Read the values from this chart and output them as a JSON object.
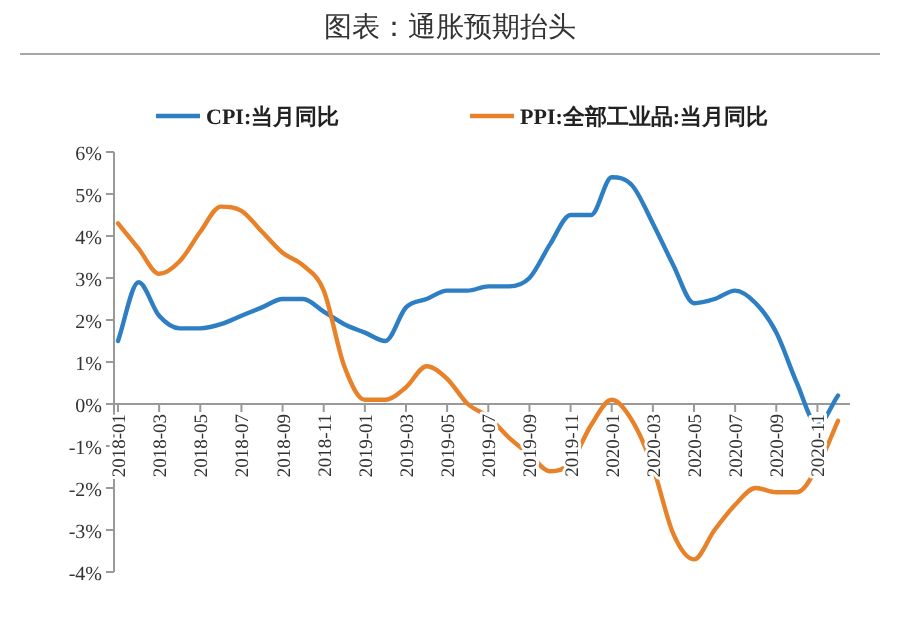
{
  "chart_data": {
    "type": "line",
    "title": "图表：通胀预期抬头",
    "categories": [
      "2018-01",
      null,
      "2018-03",
      null,
      "2018-05",
      null,
      "2018-07",
      null,
      "2018-09",
      null,
      "2018-11",
      null,
      "2019-01",
      null,
      "2019-03",
      null,
      "2019-05",
      null,
      "2019-07",
      null,
      "2019-09",
      null,
      "2019-11",
      null,
      "2020-01",
      null,
      "2020-03",
      null,
      "2020-05",
      null,
      "2020-07",
      null,
      "2020-09",
      null,
      "2020-11",
      null
    ],
    "series": [
      {
        "name": "CPI:当月同比",
        "color": "#2e7ec4",
        "values": [
          1.5,
          2.9,
          2.1,
          1.8,
          1.8,
          1.9,
          2.1,
          2.3,
          2.5,
          2.5,
          2.2,
          1.9,
          1.7,
          1.5,
          2.3,
          2.5,
          2.7,
          2.7,
          2.8,
          2.8,
          3.0,
          3.8,
          4.5,
          4.5,
          5.4,
          5.2,
          4.3,
          3.3,
          2.4,
          2.5,
          2.7,
          2.4,
          1.7,
          0.5,
          -0.5,
          0.2
        ]
      },
      {
        "name": "PPI:全部工业品:当月同比",
        "color": "#e8822a",
        "values": [
          4.3,
          3.7,
          3.1,
          3.4,
          4.1,
          4.7,
          4.6,
          4.1,
          3.6,
          3.3,
          2.7,
          0.9,
          0.1,
          0.1,
          0.4,
          0.9,
          0.6,
          0.0,
          -0.3,
          -0.8,
          -1.2,
          -1.6,
          -1.4,
          -0.5,
          0.1,
          -0.4,
          -1.5,
          -3.1,
          -3.7,
          -3.0,
          -2.4,
          -2.0,
          -2.1,
          -2.1,
          -1.5,
          -0.4
        ]
      }
    ],
    "ylim": [
      -4,
      6
    ],
    "yticks": [
      {
        "value": -4,
        "label": "-4%"
      },
      {
        "value": -3,
        "label": "-3%"
      },
      {
        "value": -2,
        "label": "-2%"
      },
      {
        "value": -1,
        "label": "-1%"
      },
      {
        "value": 0,
        "label": "0%"
      },
      {
        "value": 1,
        "label": "1%"
      },
      {
        "value": 2,
        "label": "2%"
      },
      {
        "value": 3,
        "label": "3%"
      },
      {
        "value": 4,
        "label": "4%"
      },
      {
        "value": 5,
        "label": "5%"
      },
      {
        "value": 6,
        "label": "6%"
      }
    ],
    "legend": "top",
    "grid": false
  }
}
